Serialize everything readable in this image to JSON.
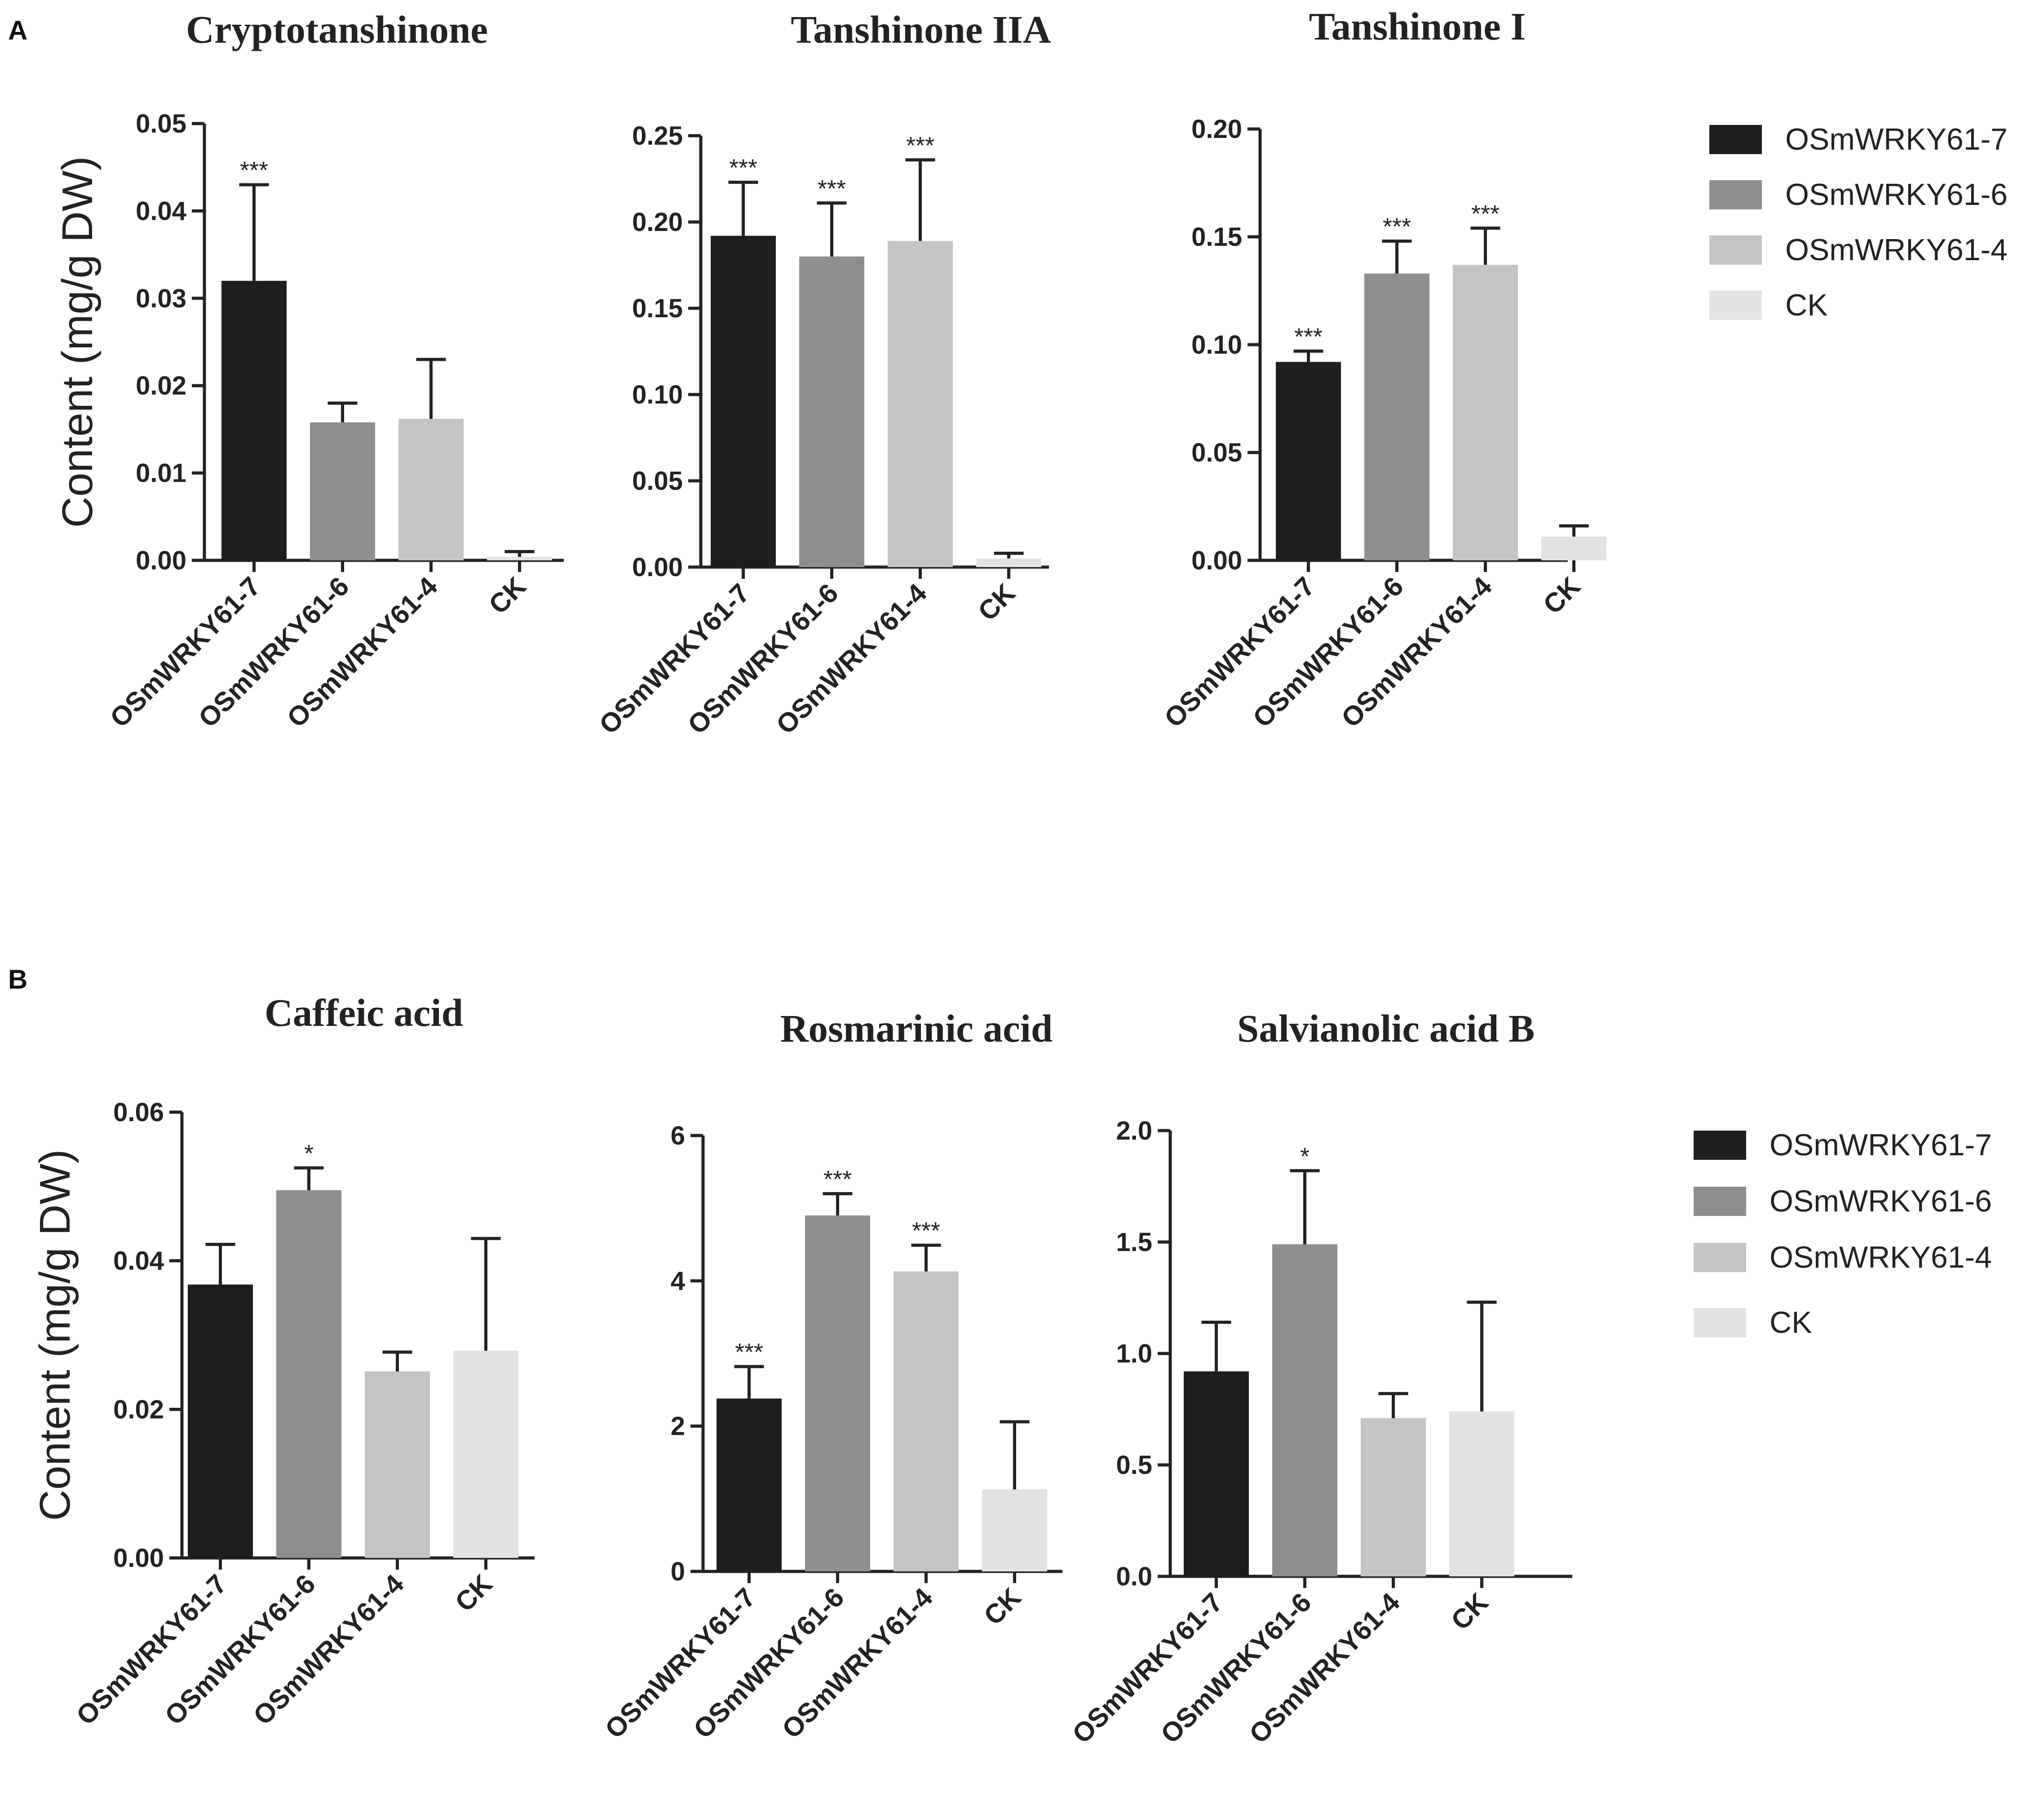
{
  "panels": [
    {
      "letter": "A"
    },
    {
      "letter": "B"
    }
  ],
  "chart_data": [
    {
      "type": "bar",
      "panel": "A",
      "title": "Cryptotanshinone",
      "ylabel": "Content (mg/g DW)",
      "xlabel": "",
      "categories": [
        "OSmWRKY61-7",
        "OSmWRKY61-6",
        "OSmWRKY61-4",
        "CK"
      ],
      "values": [
        0.032,
        0.0158,
        0.0162,
        0.0004
      ],
      "errors": [
        0.011,
        0.0022,
        0.0068,
        0.0006
      ],
      "significance": [
        "***",
        "",
        "",
        ""
      ],
      "ylim": [
        0,
        0.05
      ],
      "yticks": [
        "0.00",
        "0.01",
        "0.02",
        "0.03",
        "0.04",
        "0.05"
      ],
      "colors": [
        "#1e1e1e",
        "#8c8e90",
        "#c4c4c4",
        "#e2e3e0"
      ]
    },
    {
      "type": "bar",
      "panel": "A",
      "title": "Tanshinone  IIA",
      "ylabel": "",
      "xlabel": "",
      "categories": [
        "OSmWRKY61-7",
        "OSmWRKY61-6",
        "OSmWRKY61-4",
        "CK"
      ],
      "values": [
        0.192,
        0.18,
        0.189,
        0.005
      ],
      "errors": [
        0.031,
        0.031,
        0.047,
        0.003
      ],
      "significance": [
        "***",
        "***",
        "***",
        ""
      ],
      "ylim": [
        0,
        0.25
      ],
      "yticks": [
        "0.00",
        "0.05",
        "0.10",
        "0.15",
        "0.20",
        "0.25"
      ],
      "colors": [
        "#1e1e1e",
        "#8c8e90",
        "#c4c4c4",
        "#e2e3e0"
      ]
    },
    {
      "type": "bar",
      "panel": "A",
      "title": "Tanshinone  I",
      "ylabel": "",
      "xlabel": "",
      "categories": [
        "OSmWRKY61-7",
        "OSmWRKY61-6",
        "OSmWRKY61-4",
        "CK"
      ],
      "values": [
        0.092,
        0.133,
        0.137,
        0.011
      ],
      "errors": [
        0.005,
        0.015,
        0.017,
        0.005
      ],
      "significance": [
        "***",
        "***",
        "***",
        ""
      ],
      "ylim": [
        0,
        0.2
      ],
      "yticks": [
        "0.00",
        "0.05",
        "0.10",
        "0.15",
        "0.20"
      ],
      "colors": [
        "#1e1e1e",
        "#8c8e90",
        "#c4c4c4",
        "#e2e3e0"
      ]
    },
    {
      "type": "bar",
      "panel": "B",
      "title": "Caffeic acid",
      "ylabel": "Content (mg/g DW)",
      "xlabel": "",
      "categories": [
        "OSmWRKY61-7",
        "OSmWRKY61-6",
        "OSmWRKY61-4",
        "CK"
      ],
      "values": [
        0.0368,
        0.0495,
        0.0251,
        0.0279
      ],
      "errors": [
        0.0054,
        0.003,
        0.0026,
        0.0151
      ],
      "significance": [
        "",
        "*",
        "",
        ""
      ],
      "ylim": [
        0,
        0.06
      ],
      "yticks": [
        "0.00",
        "0.02",
        "0.04",
        "0.06"
      ],
      "colors": [
        "#1e1e1e",
        "#8c8e90",
        "#c4c4c4",
        "#e2e3e0"
      ]
    },
    {
      "type": "bar",
      "panel": "B",
      "title": "Rosmarinic acid",
      "ylabel": "",
      "xlabel": "",
      "categories": [
        "OSmWRKY61-7",
        "OSmWRKY61-6",
        "OSmWRKY61-4",
        "CK"
      ],
      "values": [
        2.38,
        4.9,
        4.13,
        1.13
      ],
      "errors": [
        0.44,
        0.3,
        0.36,
        0.93
      ],
      "significance": [
        "***",
        "***",
        "***",
        ""
      ],
      "ylim": [
        0,
        6
      ],
      "yticks": [
        "0",
        "2",
        "4",
        "6"
      ],
      "colors": [
        "#1e1e1e",
        "#8c8e90",
        "#c4c4c4",
        "#e2e3e0"
      ]
    },
    {
      "type": "bar",
      "panel": "B",
      "title": "Salvianolic acid B",
      "ylabel": "",
      "xlabel": "",
      "categories": [
        "OSmWRKY61-7",
        "OSmWRKY61-6",
        "OSmWRKY61-4",
        "CK"
      ],
      "values": [
        0.92,
        1.49,
        0.71,
        0.74
      ],
      "errors": [
        0.22,
        0.33,
        0.11,
        0.49
      ],
      "significance": [
        "",
        "*",
        "",
        ""
      ],
      "ylim": [
        0,
        2.0
      ],
      "yticks": [
        "0.0",
        "0.5",
        "1.0",
        "1.5",
        "2.0"
      ],
      "colors": [
        "#1e1e1e",
        "#8c8e90",
        "#c4c4c4",
        "#e2e3e0"
      ]
    }
  ],
  "legends": [
    {
      "panel": "A",
      "entries": [
        {
          "label": "OSmWRKY61-7",
          "color": "#1e1e1e"
        },
        {
          "label": "OSmWRKY61-6",
          "color": "#8c8e90"
        },
        {
          "label": "OSmWRKY61-4",
          "color": "#c4c4c4"
        },
        {
          "label": "CK",
          "color": "#e2e3e0"
        }
      ]
    },
    {
      "panel": "B",
      "entries": [
        {
          "label": "OSmWRKY61-7",
          "color": "#1e1e1e"
        },
        {
          "label": "OSmWRKY61-6",
          "color": "#8c8e90"
        },
        {
          "label": "OSmWRKY61-4",
          "color": "#c4c4c4"
        },
        {
          "label": "CK",
          "color": "#e2e3e0"
        }
      ]
    }
  ]
}
